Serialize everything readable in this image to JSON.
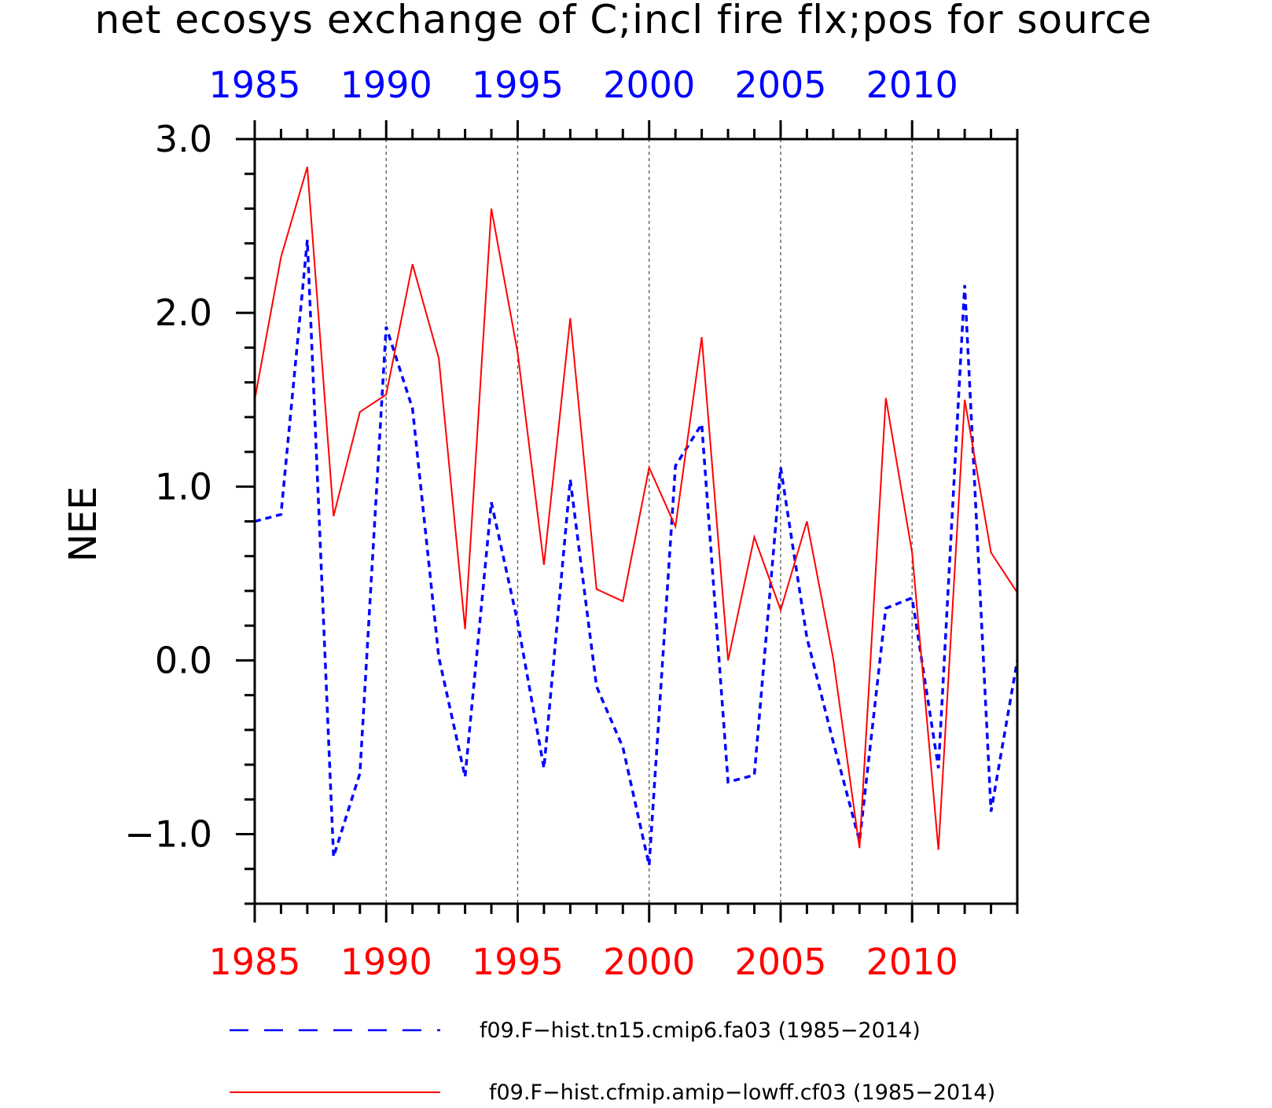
{
  "chart_data": {
    "type": "line",
    "title": "net ecosys exchange of C;incl fire flx;pos for source",
    "xlabel": "",
    "ylabel": "NEE",
    "xlim": [
      1985,
      2014
    ],
    "ylim": [
      -1.4,
      3.0
    ],
    "x_tick_values": [
      1985,
      1990,
      1995,
      2000,
      2005,
      2010
    ],
    "x_tick_labels": [
      "1985",
      "1990",
      "1995",
      "2000",
      "2005",
      "2010"
    ],
    "y_tick_values": [
      -1.0,
      0.0,
      1.0,
      2.0,
      3.0
    ],
    "y_tick_labels": [
      "−1.0",
      "0.0",
      "1.0",
      "2.0",
      "3.0"
    ],
    "grid": "vertical dashed lines at major x ticks",
    "legend_position": "bottom",
    "x": [
      1985,
      1986,
      1987,
      1988,
      1989,
      1990,
      1991,
      1992,
      1993,
      1994,
      1995,
      1996,
      1997,
      1998,
      1999,
      2000,
      2001,
      2002,
      2003,
      2004,
      2005,
      2006,
      2007,
      2008,
      2009,
      2010,
      2011,
      2012,
      2013,
      2014
    ],
    "series": [
      {
        "name": "f09.F−hist.tn15.cmip6.fa03 (1985−2014)",
        "style": "dashed",
        "color": "#0000ff",
        "values": [
          0.8,
          0.84,
          2.42,
          -1.13,
          -0.65,
          1.92,
          1.45,
          0.02,
          -0.67,
          0.91,
          0.22,
          -0.62,
          1.04,
          -0.15,
          -0.5,
          -1.18,
          1.12,
          1.36,
          -0.7,
          -0.66,
          1.11,
          0.13,
          -0.47,
          -1.04,
          0.3,
          0.36,
          -0.62,
          2.16,
          -0.87,
          0.0
        ]
      },
      {
        "name": "f09.F−hist.cfmip.amip−lowff.cf03 (1985−2014)",
        "style": "solid",
        "color": "#ff0000",
        "values": [
          1.5,
          2.32,
          2.84,
          0.83,
          1.43,
          1.53,
          2.28,
          1.74,
          0.18,
          2.6,
          1.77,
          0.55,
          1.97,
          0.41,
          0.34,
          1.11,
          0.77,
          1.86,
          0.0,
          0.71,
          0.29,
          0.8,
          0.01,
          -1.08,
          1.51,
          0.62,
          -1.09,
          1.5,
          0.62,
          0.39
        ]
      }
    ]
  }
}
